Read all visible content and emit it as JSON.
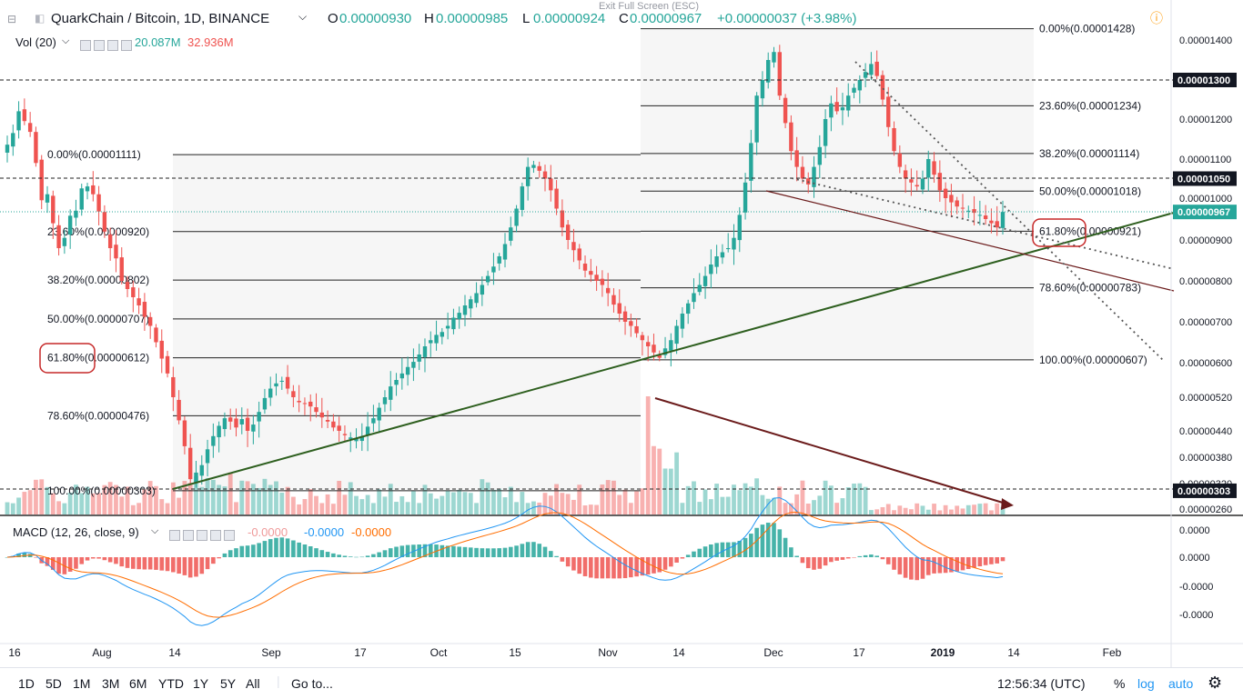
{
  "header": {
    "title": "QuarkChain / Bitcoin, 1D, BINANCE",
    "o_label": "O",
    "o_value": "0.00000930",
    "h_label": "H",
    "h_value": "0.00000985",
    "l_label": "L",
    "l_value": "0.00000924",
    "c_label": "C",
    "c_value": "0.00000967",
    "change": "+0.00000037 (+3.98%)",
    "exit_fullscreen": "Exit Full Screen (ESC)"
  },
  "volume": {
    "label": "Vol (20)",
    "v1": "20.087M",
    "v2": "32.936M"
  },
  "macd": {
    "label": "MACD (12, 26, close, 9)",
    "v1": "-0.0000",
    "v2": "-0.0000",
    "v3": "-0.0000"
  },
  "toolbar": {
    "ranges": [
      "1D",
      "5D",
      "1M",
      "3M",
      "6M",
      "YTD",
      "1Y",
      "5Y",
      "All"
    ],
    "goto": "Go to...",
    "time": "12:56:34 (UTC)",
    "percent": "%",
    "log": "log",
    "auto": "auto"
  },
  "colors": {
    "up": "#26a69a",
    "down": "#ef5350",
    "trend_green": "#2e5f1f",
    "trend_brown": "#6b1b1b",
    "fib_box": "#f5f5f5"
  },
  "chart_data": {
    "type": "candlestick",
    "title": "QuarkChain / Bitcoin, 1D, BINANCE",
    "y_axis_ticks": [
      "0.00001400",
      "0.00001300",
      "0.00001200",
      "0.00001100",
      "0.00001000",
      "0.00000900",
      "0.00000800",
      "0.00000700",
      "0.00000600",
      "0.00000520",
      "0.00000440",
      "0.00000380",
      "0.00000320",
      "0.00000260"
    ],
    "price_labels": [
      {
        "text": "0.00001300",
        "value": 1.3e-05,
        "style": "black"
      },
      {
        "text": "0.00001050",
        "value": 1.05e-05,
        "style": "black"
      },
      {
        "text": "0.00000967",
        "value": 9.67e-06,
        "style": "teal"
      },
      {
        "text": "0.00000303",
        "value": 3.03e-06,
        "style": "black"
      }
    ],
    "macd_ticks": [
      "0.0000",
      "0.0000",
      "-0.0000",
      "-0.0000"
    ],
    "x_ticks": [
      "16",
      "Aug",
      "14",
      "Sep",
      "17",
      "Oct",
      "15",
      "Nov",
      "14",
      "Dec",
      "17",
      "2019",
      "14",
      "Feb"
    ],
    "fib_left": [
      {
        "label": "0.00%(0.00001111)",
        "value": 1.111e-05
      },
      {
        "label": "23.60%(0.00000920)",
        "value": 9.2e-06
      },
      {
        "label": "38.20%(0.00000802)",
        "value": 8.02e-06
      },
      {
        "label": "50.00%(0.00000707)",
        "value": 7.07e-06
      },
      {
        "label": "61.80%(0.00000612)",
        "value": 6.12e-06
      },
      {
        "label": "78.60%(0.00000476)",
        "value": 4.76e-06
      },
      {
        "label": "100.00%(0.00000303)",
        "value": 3.03e-06
      }
    ],
    "fib_right": [
      {
        "label": "0.00%(0.00001428)",
        "value": 1.428e-05
      },
      {
        "label": "23.60%(0.00001234)",
        "value": 1.234e-05
      },
      {
        "label": "38.20%(0.00001114)",
        "value": 1.114e-05
      },
      {
        "label": "50.00%(0.00001018)",
        "value": 1.018e-05
      },
      {
        "label": "61.80%(0.00000921)",
        "value": 9.21e-06
      },
      {
        "label": "78.60%(0.00000783)",
        "value": 7.83e-06
      },
      {
        "label": "100.00%(0.00000607)",
        "value": 6.07e-06
      }
    ],
    "closes": [
      1136,
      1165,
      1220,
      1195,
      1168,
      1090,
      995,
      1010,
      940,
      880,
      905,
      958,
      970,
      1025,
      1030,
      1010,
      968,
      920,
      880,
      855,
      800,
      780,
      760,
      740,
      712,
      690,
      650,
      610,
      575,
      520,
      465,
      405,
      330,
      345,
      362,
      398,
      428,
      452,
      470,
      462,
      448,
      468,
      440,
      455,
      485,
      518,
      540,
      552,
      558,
      540,
      520,
      508,
      505,
      498,
      485,
      472,
      462,
      448,
      440,
      430,
      425,
      422,
      428,
      450,
      470,
      495,
      520,
      545,
      560,
      575,
      590,
      602,
      620,
      640,
      655,
      668,
      675,
      690,
      710,
      722,
      740,
      755,
      770,
      790,
      812,
      835,
      860,
      890,
      930,
      975,
      1030,
      1080,
      1085,
      1070,
      1050,
      1020,
      975,
      930,
      900,
      875,
      850,
      825,
      815,
      800,
      790,
      770,
      742,
      720,
      700,
      690,
      672,
      655,
      640,
      625,
      612,
      635,
      655,
      690,
      720,
      745,
      770,
      790,
      812,
      840,
      860,
      870,
      880,
      905,
      960,
      1040,
      1140,
      1260,
      1300,
      1350,
      1370,
      1260,
      1190,
      1120,
      1080,
      1050,
      1035,
      1080,
      1130,
      1200,
      1240,
      1220,
      1230,
      1260,
      1280,
      1300,
      1320,
      1340,
      1310,
      1250,
      1180,
      1120,
      1080,
      1050,
      1040,
      1030,
      1050,
      1100,
      1060,
      1020,
      1000,
      990,
      980,
      975,
      970,
      965,
      960,
      950,
      940,
      930,
      967
    ]
  }
}
